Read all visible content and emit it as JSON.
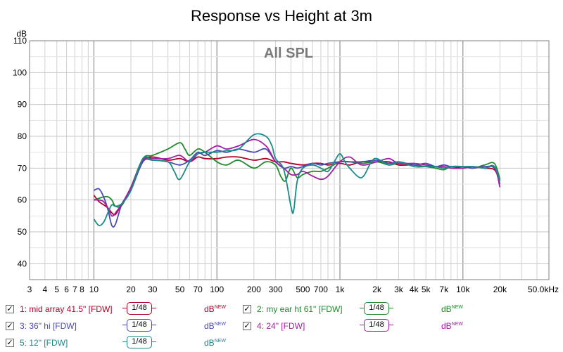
{
  "chart_data": {
    "type": "line",
    "title": "Response vs Height at 3m",
    "watermark": "All SPL",
    "ylabel": "dB",
    "xlabel": "",
    "x_scale": "log",
    "xlim": [
      3,
      50000
    ],
    "ylim": [
      35,
      110
    ],
    "x_tick_labels": [
      {
        "x": 3,
        "label": "3"
      },
      {
        "x": 4,
        "label": "4"
      },
      {
        "x": 5,
        "label": "5"
      },
      {
        "x": 6,
        "label": "6"
      },
      {
        "x": 7,
        "label": "7"
      },
      {
        "x": 8,
        "label": "8"
      },
      {
        "x": 10,
        "label": "10"
      },
      {
        "x": 20,
        "label": "20"
      },
      {
        "x": 30,
        "label": "30"
      },
      {
        "x": 50,
        "label": "50"
      },
      {
        "x": 70,
        "label": "70"
      },
      {
        "x": 100,
        "label": "100"
      },
      {
        "x": 200,
        "label": "200"
      },
      {
        "x": 300,
        "label": "300"
      },
      {
        "x": 500,
        "label": "500"
      },
      {
        "x": 700,
        "label": "700"
      },
      {
        "x": 1000,
        "label": "1k"
      },
      {
        "x": 2000,
        "label": "2k"
      },
      {
        "x": 3000,
        "label": "3k"
      },
      {
        "x": 4000,
        "label": "4k"
      },
      {
        "x": 5000,
        "label": "5k"
      },
      {
        "x": 7000,
        "label": "7k"
      },
      {
        "x": 10000,
        "label": "10k"
      },
      {
        "x": 20000,
        "label": "20k"
      },
      {
        "x": 50000,
        "label": "50.0kHz"
      }
    ],
    "y_ticks": [
      40,
      50,
      60,
      70,
      80,
      90,
      100,
      110
    ],
    "grid": true,
    "legend_position": "bottom",
    "series": [
      {
        "name": "1: mid array 41.5\" [FDW]",
        "color": "#b0002a",
        "x": [
          10,
          11,
          12,
          13,
          14,
          15,
          17,
          20,
          25,
          30,
          40,
          50,
          60,
          70,
          80,
          100,
          120,
          150,
          200,
          250,
          300,
          350,
          400,
          500,
          600,
          700,
          800,
          1000,
          1200,
          1500,
          2000,
          2500,
          3000,
          4000,
          5000,
          6000,
          7000,
          8000,
          10000,
          12000,
          15000,
          18000,
          20000
        ],
        "y": [
          61.5,
          59.5,
          58.5,
          57.5,
          56,
          55.5,
          59,
          63.5,
          72,
          73.5,
          72.5,
          73,
          72,
          73.5,
          73,
          73,
          73.5,
          73.5,
          72.5,
          73,
          72,
          72,
          71.5,
          71,
          71.5,
          71.5,
          71,
          71.5,
          71,
          72,
          72,
          72,
          71,
          71,
          70.5,
          70.5,
          70,
          70.5,
          70,
          70.5,
          70,
          69.5,
          66
        ]
      },
      {
        "name": "2: my ear ht 61\" [FDW]",
        "color": "#1f8a2a",
        "x": [
          10,
          11,
          12,
          13,
          14,
          15,
          17,
          20,
          25,
          30,
          40,
          50,
          55,
          60,
          70,
          80,
          100,
          120,
          150,
          200,
          250,
          300,
          330,
          360,
          400,
          450,
          500,
          600,
          700,
          800,
          1000,
          1200,
          1500,
          2000,
          2500,
          3000,
          4000,
          5000,
          6000,
          7000,
          8000,
          10000,
          12000,
          15000,
          18000,
          20000
        ],
        "y": [
          60,
          60.5,
          61,
          61,
          60,
          58,
          58.5,
          64,
          73,
          74,
          76,
          78,
          76,
          74,
          76,
          75,
          72,
          71,
          72.5,
          70,
          72,
          71,
          67.5,
          66,
          70,
          67,
          68,
          69,
          69,
          70,
          72,
          72,
          71.5,
          72,
          71,
          71.5,
          71,
          70.5,
          70,
          69.5,
          70.5,
          70.5,
          70,
          71,
          71.5,
          66.5
        ]
      },
      {
        "name": "3: 36\" hi [FDW]",
        "color": "#4a4ab8",
        "x": [
          10,
          11,
          12,
          13,
          14,
          15,
          17,
          20,
          25,
          30,
          40,
          50,
          60,
          70,
          80,
          100,
          120,
          150,
          200,
          250,
          300,
          350,
          400,
          450,
          500,
          600,
          700,
          800,
          1000,
          1200,
          1500,
          2000,
          2500,
          3000,
          4000,
          5000,
          6000,
          7000,
          8000,
          10000,
          12000,
          15000,
          18000,
          20000
        ],
        "y": [
          63,
          63.5,
          61,
          57,
          52,
          52.5,
          59,
          63,
          72,
          72.5,
          72,
          71,
          72.5,
          75,
          74,
          75.5,
          75,
          76,
          75,
          76,
          72,
          70,
          70.5,
          70,
          70.5,
          71.5,
          71,
          71.5,
          72,
          72,
          72,
          72.5,
          71.5,
          72,
          71,
          71.5,
          70.5,
          71,
          70.5,
          70.5,
          70,
          70.5,
          70,
          65
        ]
      },
      {
        "name": "4: 24\" [FDW]",
        "color": "#a020a0",
        "x": [
          10,
          11,
          12,
          13,
          14,
          15,
          17,
          20,
          25,
          30,
          40,
          50,
          60,
          70,
          80,
          100,
          120,
          150,
          200,
          250,
          280,
          300,
          350,
          400,
          450,
          500,
          600,
          700,
          800,
          1000,
          1200,
          1500,
          2000,
          2500,
          3000,
          4000,
          5000,
          6000,
          7000,
          8000,
          10000,
          12000,
          15000,
          18000,
          20000
        ],
        "y": [
          60,
          60,
          59.5,
          57.5,
          55,
          56,
          59,
          64,
          72.5,
          73,
          73,
          74,
          72,
          74.5,
          75,
          77,
          76,
          77,
          79,
          77,
          74,
          72,
          70,
          68,
          68,
          69,
          67.5,
          66.5,
          67.5,
          72,
          73.5,
          71,
          72,
          73,
          71.5,
          71.5,
          71,
          70.5,
          70.5,
          70,
          70,
          70.5,
          70,
          70.5,
          64
        ]
      },
      {
        "name": "5: 12\" [FDW]",
        "color": "#1a8a8a",
        "x": [
          10,
          11,
          12,
          13,
          14,
          15,
          17,
          20,
          25,
          30,
          40,
          45,
          50,
          60,
          70,
          80,
          100,
          120,
          150,
          200,
          250,
          280,
          300,
          350,
          400,
          420,
          450,
          500,
          600,
          700,
          800,
          900,
          1000,
          1100,
          1200,
          1500,
          1800,
          2000,
          2500,
          3000,
          4000,
          5000,
          6000,
          7000,
          8000,
          10000,
          12000,
          15000,
          18000,
          20000
        ],
        "y": [
          54,
          52,
          53,
          56,
          58.5,
          58,
          59,
          63,
          73,
          72.5,
          72,
          69,
          66.5,
          72,
          74.5,
          75,
          75,
          75.5,
          76,
          80.5,
          80,
          77,
          73,
          69.5,
          58,
          56.5,
          66,
          70,
          71,
          70,
          69,
          72,
          74.5,
          72,
          70,
          67,
          72,
          73,
          71,
          72,
          70.5,
          70.5,
          70.5,
          70,
          70.5,
          70.5,
          70.5,
          70,
          70.5,
          66
        ]
      }
    ]
  },
  "legend": {
    "smoothing_label": "1/48",
    "items": [
      {
        "label": "1: mid array 41.5\" [FDW]",
        "color": "#b0002a",
        "unit": "dB",
        "badge": "NEW",
        "checked": "✓"
      },
      {
        "label": "2: my ear ht 61\" [FDW]",
        "color": "#1f8a2a",
        "unit": "dB",
        "badge": "NEW",
        "checked": "✓"
      },
      {
        "label": "3: 36\" hi [FDW]",
        "color": "#4a4ab8",
        "unit": "dB",
        "badge": "NEW",
        "checked": "✓"
      },
      {
        "label": "4: 24\" [FDW]",
        "color": "#a020a0",
        "unit": "dB",
        "badge": "NEW",
        "checked": "✓"
      },
      {
        "label": "5: 12\" [FDW]",
        "color": "#1a8a8a",
        "unit": "dB",
        "badge": "NEW",
        "checked": "✓"
      }
    ]
  }
}
